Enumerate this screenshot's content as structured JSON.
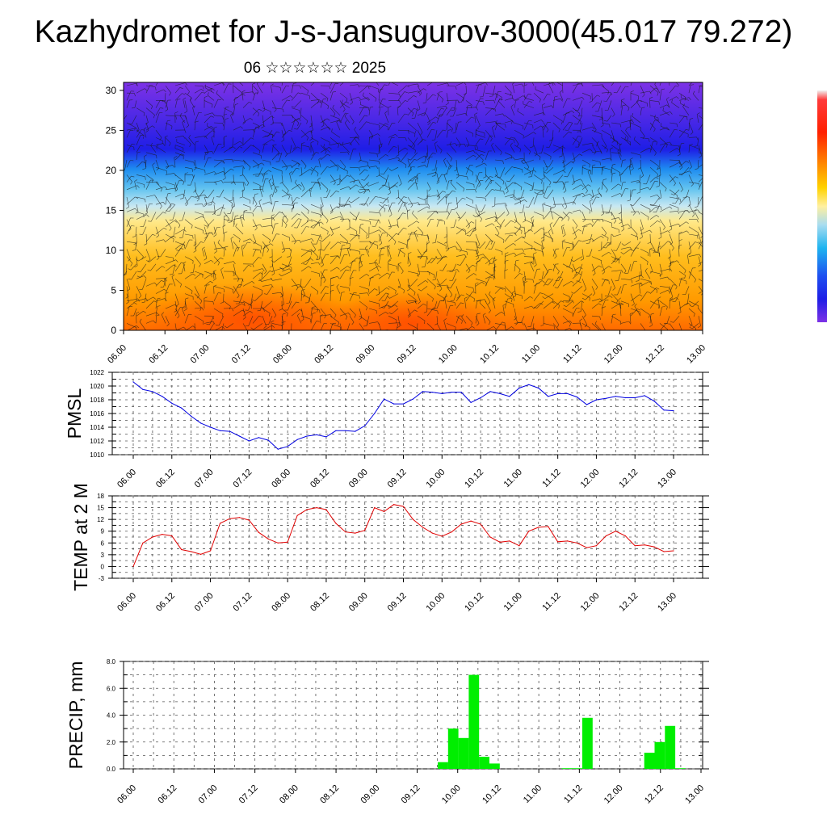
{
  "title": "Kazhydromet for J-s-Jansugurov-3000(45.017 79.272)",
  "subtitle": "06 ☆☆☆☆☆☆ 2025",
  "chart_data": [
    {
      "type": "heatmap",
      "description_key": "cross_section",
      "ylim": [
        0,
        30
      ],
      "yticks": [
        "0",
        "5",
        "10",
        "15",
        "20",
        "25",
        "30"
      ],
      "xticks": [
        "06.00",
        "06.12",
        "07.00",
        "07.12",
        "08.00",
        "08.12",
        "09.00",
        "09.12",
        "10.00",
        "10.12",
        "11.00",
        "11.12",
        "12.00",
        "12.12",
        "13.00"
      ],
      "colors": {
        "warm_low": "#ff5a00",
        "warm_mid": "#ffb400",
        "yellow": "#ffec8c",
        "light_blue": "#a8dcf0",
        "cyan": "#1eb4f0",
        "blue": "#1e1ee6",
        "violet": "#7d32e6"
      },
      "overlay": "wind barbs"
    },
    {
      "type": "line",
      "ylabel": "PMSL",
      "ylim": [
        1010,
        1022
      ],
      "yticks": [
        "1010",
        "1012",
        "1014",
        "1016",
        "1018",
        "1020",
        "1022"
      ],
      "xticks": [
        "06.00",
        "06.12",
        "07.00",
        "07.12",
        "08.00",
        "08.12",
        "09.00",
        "09.12",
        "10.00",
        "10.12",
        "11.00",
        "11.12",
        "12.00",
        "12.12",
        "13.00"
      ],
      "color": "#0000e0",
      "values": [
        1020.6,
        1019.5,
        1019.2,
        1018.5,
        1017.5,
        1016.8,
        1015.6,
        1014.6,
        1014.0,
        1013.5,
        1013.4,
        1012.7,
        1012.0,
        1012.5,
        1012.1,
        1010.8,
        1011.2,
        1012.2,
        1012.7,
        1012.9,
        1012.6,
        1013.5,
        1013.5,
        1013.4,
        1014.2,
        1016.0,
        1018.1,
        1017.4,
        1017.4,
        1018.1,
        1019.2,
        1019.1,
        1018.9,
        1019.1,
        1019.1,
        1017.6,
        1018.3,
        1019.2,
        1018.9,
        1018.5,
        1019.7,
        1020.2,
        1019.7,
        1018.5,
        1018.9,
        1018.9,
        1018.4,
        1017.3,
        1018.0,
        1018.2,
        1018.5,
        1018.3,
        1018.3,
        1018.6,
        1017.8,
        1016.5,
        1016.4
      ]
    },
    {
      "type": "line",
      "ylabel": "TEMP at 2 M",
      "ylim": [
        -3,
        18
      ],
      "yticks": [
        "-3",
        "0",
        "3",
        "6",
        "9",
        "12",
        "15",
        "18"
      ],
      "xticks": [
        "06.00",
        "06.12",
        "07.00",
        "07.12",
        "08.00",
        "08.12",
        "09.00",
        "09.12",
        "10.00",
        "10.12",
        "11.00",
        "11.12",
        "12.00",
        "12.12",
        "13.00"
      ],
      "color": "#e00000",
      "values": [
        0.0,
        6.0,
        7.5,
        8.2,
        7.8,
        4.3,
        3.8,
        3.1,
        4.0,
        11.0,
        12.2,
        12.5,
        11.8,
        8.7,
        7.0,
        6.0,
        6.2,
        13.0,
        14.5,
        15.0,
        14.5,
        11.0,
        8.8,
        8.5,
        9.2,
        15.0,
        14.0,
        15.8,
        15.3,
        12.0,
        10.0,
        8.5,
        7.7,
        8.8,
        10.8,
        11.6,
        10.8,
        7.5,
        6.2,
        6.5,
        5.3,
        9.0,
        10.0,
        10.2,
        6.3,
        6.5,
        6.0,
        4.8,
        5.3,
        7.8,
        9.0,
        7.8,
        5.3,
        5.5,
        5.0,
        3.8,
        4.0
      ]
    },
    {
      "type": "bar",
      "ylabel": "PRECIP, mm",
      "ylim": [
        0,
        8
      ],
      "yticks": [
        "0.0",
        "2.0",
        "4.0",
        "6.0",
        "8.0"
      ],
      "xticks": [
        "06.00",
        "06.12",
        "07.00",
        "07.12",
        "08.00",
        "08.12",
        "09.00",
        "09.12",
        "10.00",
        "10.12",
        "11.00",
        "11.12",
        "12.00",
        "12.12",
        "13.00"
      ],
      "color": "#00ee00",
      "values": [
        0,
        0,
        0,
        0,
        0,
        0,
        0,
        0,
        0,
        0,
        0,
        0,
        0,
        0,
        0,
        0,
        0,
        0,
        0,
        0,
        0,
        0,
        0,
        0,
        0,
        0,
        0,
        0,
        0,
        0,
        0.5,
        3.0,
        2.3,
        7.0,
        0.9,
        0.4,
        0,
        0,
        0,
        0,
        0,
        0,
        0.05,
        0.05,
        3.8,
        0,
        0,
        0,
        0,
        0,
        1.2,
        2.0,
        3.2,
        0.05,
        0,
        0
      ]
    }
  ],
  "colorbar": {
    "type": "colorbar",
    "colors_top_to_bottom": [
      "#ff5a00",
      "#ffb400",
      "#ffec8c",
      "#a8dcf0",
      "#1eb4f0",
      "#1e1ee6",
      "#7d32e6"
    ]
  }
}
